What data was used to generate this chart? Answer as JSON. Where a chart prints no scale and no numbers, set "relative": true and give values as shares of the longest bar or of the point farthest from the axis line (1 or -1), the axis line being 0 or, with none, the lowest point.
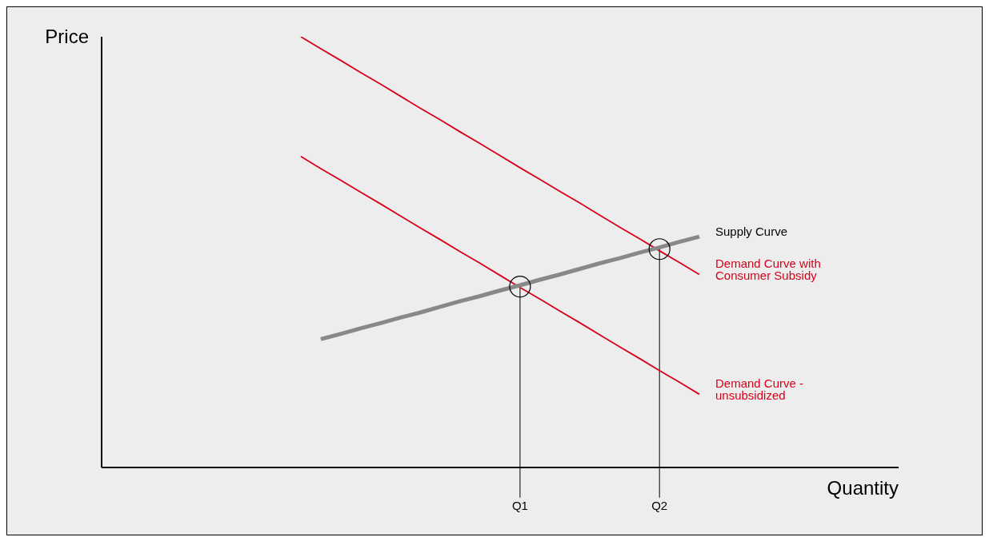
{
  "chart_data": {
    "type": "line",
    "relative": true,
    "xlabel": "Quantity",
    "ylabel": "Price",
    "grid": false,
    "marker": "none",
    "categories": [
      null,
      null,
      null,
      null,
      null,
      null,
      null,
      null,
      null,
      null,
      null,
      null,
      null,
      null,
      null,
      null,
      null,
      null,
      null,
      null,
      null,
      "Q1",
      null,
      null,
      null,
      null,
      null,
      null,
      "Q2",
      null,
      null,
      null,
      null,
      null,
      null,
      null,
      null,
      null,
      null,
      null,
      null
    ],
    "series": [
      {
        "name": "Demand Curve with Consumer Subsidy",
        "color": "#d9001b",
        "values": [
          null,
          null,
          null,
          null,
          null,
          null,
          null,
          null,
          null,
          null,
          1,
          0.972,
          0.945,
          0.917,
          0.89,
          0.862,
          0.834,
          0.807,
          0.779,
          0.752,
          0.724,
          0.696,
          0.669,
          0.641,
          0.614,
          0.586,
          0.558,
          0.531,
          0.503,
          0.476,
          0.448,
          null,
          null,
          null,
          null,
          null,
          null,
          null,
          null,
          null,
          null
        ]
      },
      {
        "name": "Demand Curve - unsubsidized",
        "color": "#d9001b",
        "values": [
          null,
          null,
          null,
          null,
          null,
          null,
          null,
          null,
          null,
          null,
          0.722,
          0.694,
          0.667,
          0.639,
          0.612,
          0.584,
          0.556,
          0.529,
          0.501,
          0.474,
          0.446,
          0.418,
          0.391,
          0.363,
          0.336,
          0.308,
          0.28,
          0.253,
          0.225,
          0.198,
          0.17,
          null,
          null,
          null,
          null,
          null,
          null,
          null,
          null,
          null,
          null
        ]
      },
      {
        "name": "Supply Curve",
        "color": "#888888",
        "values": [
          null,
          null,
          null,
          null,
          null,
          null,
          null,
          null,
          null,
          null,
          null,
          0.298,
          0.31,
          0.323,
          0.335,
          0.348,
          0.36,
          0.373,
          0.386,
          0.398,
          0.411,
          0.423,
          0.436,
          0.448,
          0.461,
          0.474,
          0.486,
          0.499,
          0.511,
          0.524,
          0.536,
          null,
          null,
          null,
          null,
          null,
          null,
          null,
          null,
          null,
          null
        ]
      },
      {
        "type": "scatter",
        "marker": "circle",
        "color": "#000000",
        "values": [
          null,
          null,
          null,
          null,
          null,
          null,
          null,
          null,
          null,
          null,
          null,
          null,
          null,
          null,
          null,
          null,
          null,
          null,
          null,
          null,
          null,
          0.42,
          null,
          null,
          null,
          null,
          null,
          null,
          0.507,
          null,
          null,
          null,
          null,
          null,
          null,
          null,
          null,
          null,
          null,
          null,
          null
        ]
      }
    ],
    "ref_lines": [
      {
        "axis": "x",
        "value": "Q1",
        "color": "#000000"
      },
      {
        "axis": "x",
        "value": "Q2",
        "color": "#000000"
      }
    ]
  }
}
